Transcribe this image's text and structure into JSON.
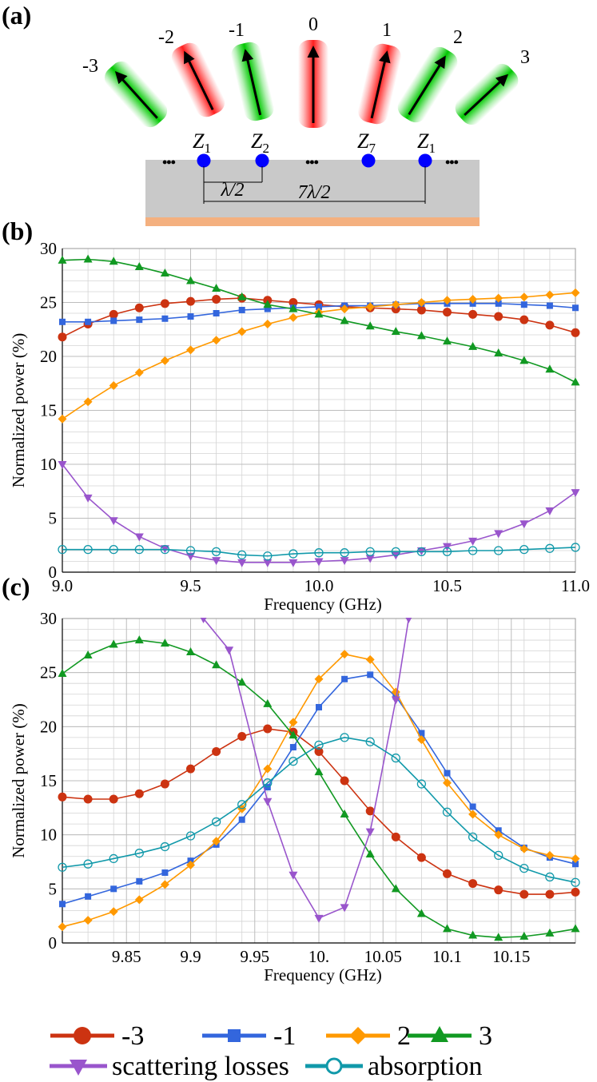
{
  "panel_labels": {
    "a": "(a)",
    "b": "(b)",
    "c": "(c)"
  },
  "diagram": {
    "beam_labels": [
      "-3",
      "-2",
      "-1",
      "0",
      "1",
      "2",
      "3"
    ],
    "beam_colors": [
      "green",
      "red",
      "green",
      "red",
      "red",
      "green",
      "green"
    ],
    "ellipsis": "•••",
    "scatterer_labels": [
      {
        "letter": "Z",
        "sub": "1"
      },
      {
        "letter": "Z",
        "sub": "2"
      },
      {
        "letter": "Z",
        "sub": "7"
      },
      {
        "letter": "Z",
        "sub": "1"
      }
    ],
    "spacing_short": "λ/2",
    "spacing_long": "7λ/2",
    "colors": {
      "substrate": "#c9c9c9",
      "ground": "#f4b07f",
      "scatterer": "#0000ff",
      "green": "#00c800",
      "red": "#ff2020"
    }
  },
  "chart_data": [
    {
      "panel": "b",
      "type": "line",
      "xlabel": "Frequency (GHz)",
      "ylabel": "Normalized power (%)",
      "xlim": [
        9.0,
        11.0
      ],
      "ylim": [
        0,
        30
      ],
      "xticks": [
        9.0,
        9.5,
        10.0,
        10.5,
        11.0
      ],
      "xtick_labels": [
        "9.0",
        "9.5",
        "10.0",
        "10.5",
        "11.0"
      ],
      "yticks": [
        0,
        5,
        10,
        15,
        20,
        25,
        30
      ],
      "ytick_labels": [
        "0",
        "5",
        "10",
        "15",
        "20",
        "25",
        "30"
      ],
      "grid": true,
      "x": [
        9.0,
        9.1,
        9.2,
        9.3,
        9.4,
        9.5,
        9.6,
        9.7,
        9.8,
        9.9,
        10.0,
        10.1,
        10.2,
        10.3,
        10.4,
        10.5,
        10.6,
        10.7,
        10.8,
        10.9,
        11.0
      ],
      "series": [
        {
          "name": "-3",
          "color": "#cc3311",
          "marker": "circle",
          "values": [
            21.8,
            23.0,
            23.9,
            24.5,
            24.9,
            25.1,
            25.3,
            25.4,
            25.2,
            25.0,
            24.8,
            24.6,
            24.5,
            24.4,
            24.3,
            24.1,
            23.9,
            23.7,
            23.4,
            22.9,
            22.2
          ]
        },
        {
          "name": "-1",
          "color": "#3366dd",
          "marker": "square",
          "values": [
            23.2,
            23.2,
            23.3,
            23.4,
            23.5,
            23.7,
            24.0,
            24.3,
            24.4,
            24.5,
            24.6,
            24.7,
            24.7,
            24.8,
            24.9,
            24.9,
            24.9,
            24.9,
            24.8,
            24.7,
            24.5
          ]
        },
        {
          "name": "2",
          "color": "#ff9900",
          "marker": "diamond",
          "values": [
            14.2,
            15.8,
            17.3,
            18.5,
            19.6,
            20.6,
            21.5,
            22.3,
            23.0,
            23.6,
            24.1,
            24.4,
            24.6,
            24.8,
            25.0,
            25.2,
            25.3,
            25.4,
            25.5,
            25.7,
            25.9
          ]
        },
        {
          "name": "3",
          "color": "#119922",
          "marker": "triangle-up",
          "values": [
            28.9,
            29.0,
            28.8,
            28.3,
            27.7,
            27.0,
            26.3,
            25.5,
            24.8,
            24.4,
            23.9,
            23.3,
            22.8,
            22.3,
            21.9,
            21.4,
            20.9,
            20.3,
            19.6,
            18.8,
            17.6
          ]
        },
        {
          "name": "scattering losses",
          "color": "#9955cc",
          "marker": "triangle-down",
          "values": [
            10.0,
            6.9,
            4.8,
            3.3,
            2.2,
            1.5,
            1.1,
            0.9,
            0.9,
            0.9,
            1.0,
            1.1,
            1.3,
            1.6,
            2.0,
            2.4,
            2.9,
            3.6,
            4.5,
            5.7,
            7.4
          ]
        },
        {
          "name": "absorption",
          "color": "#1199aa",
          "marker": "circle-open",
          "values": [
            2.1,
            2.1,
            2.1,
            2.1,
            2.1,
            2.0,
            1.9,
            1.6,
            1.5,
            1.7,
            1.8,
            1.8,
            1.9,
            1.9,
            1.9,
            1.9,
            2.0,
            2.0,
            2.1,
            2.2,
            2.3
          ]
        }
      ]
    },
    {
      "panel": "c",
      "type": "line",
      "xlabel": "Frequency (GHz)",
      "ylabel": "Normalized power (%)",
      "xlim": [
        9.8,
        10.2
      ],
      "ylim": [
        0,
        30
      ],
      "xticks": [
        9.85,
        9.9,
        9.95,
        10.0,
        10.05,
        10.1,
        10.15
      ],
      "xtick_labels": [
        "9.85",
        "9.9",
        "9.95",
        "10.",
        "10.05",
        "10.1",
        "10.15"
      ],
      "yticks": [
        0,
        5,
        10,
        15,
        20,
        25,
        30
      ],
      "ytick_labels": [
        "0",
        "5",
        "10",
        "15",
        "20",
        "25",
        "30"
      ],
      "grid": true,
      "x": [
        9.8,
        9.82,
        9.84,
        9.86,
        9.88,
        9.9,
        9.92,
        9.94,
        9.96,
        9.98,
        10.0,
        10.02,
        10.04,
        10.06,
        10.08,
        10.1,
        10.12,
        10.14,
        10.16,
        10.18,
        10.2
      ],
      "series": [
        {
          "name": "-3",
          "color": "#cc3311",
          "marker": "circle",
          "values": [
            13.5,
            13.3,
            13.3,
            13.8,
            14.7,
            16.1,
            17.7,
            19.1,
            19.8,
            19.5,
            17.7,
            15.0,
            12.2,
            9.8,
            7.9,
            6.4,
            5.5,
            4.9,
            4.5,
            4.5,
            4.7
          ]
        },
        {
          "name": "-1",
          "color": "#3366dd",
          "marker": "square",
          "values": [
            3.6,
            4.3,
            5.0,
            5.7,
            6.5,
            7.6,
            9.1,
            11.4,
            14.4,
            18.1,
            21.8,
            24.4,
            24.8,
            22.8,
            19.4,
            15.7,
            12.6,
            10.4,
            8.8,
            7.9,
            7.3
          ]
        },
        {
          "name": "2",
          "color": "#ff9900",
          "marker": "diamond",
          "values": [
            1.5,
            2.1,
            2.9,
            4.0,
            5.4,
            7.2,
            9.4,
            12.4,
            16.1,
            20.4,
            24.4,
            26.7,
            26.2,
            23.2,
            18.8,
            14.8,
            11.9,
            10.0,
            8.7,
            8.1,
            7.8
          ]
        },
        {
          "name": "3",
          "color": "#119922",
          "marker": "triangle-up",
          "values": [
            24.9,
            26.6,
            27.6,
            28.0,
            27.7,
            26.9,
            25.7,
            24.1,
            22.1,
            19.2,
            15.8,
            11.9,
            8.2,
            5.0,
            2.7,
            1.3,
            0.7,
            0.5,
            0.6,
            0.9,
            1.3
          ]
        },
        {
          "name": "scattering losses",
          "color": "#9955cc",
          "marker": "triangle-down",
          "x": [
            9.91,
            9.93,
            9.96,
            9.98,
            10.0,
            10.02,
            10.04,
            10.06,
            10.07
          ],
          "values": [
            30.0,
            27.1,
            13.1,
            6.3,
            2.3,
            3.3,
            10.3,
            22.5,
            30.0
          ]
        },
        {
          "name": "absorption",
          "color": "#1199aa",
          "marker": "circle-open",
          "values": [
            7.0,
            7.3,
            7.8,
            8.3,
            8.9,
            9.9,
            11.2,
            12.8,
            14.8,
            16.8,
            18.3,
            19.0,
            18.6,
            17.1,
            14.7,
            12.1,
            9.8,
            8.1,
            6.9,
            6.1,
            5.6
          ]
        }
      ]
    }
  ],
  "legend": {
    "row1": [
      "-3",
      "-1",
      "2",
      "3"
    ],
    "row2": [
      "scattering losses",
      "absorption"
    ]
  }
}
